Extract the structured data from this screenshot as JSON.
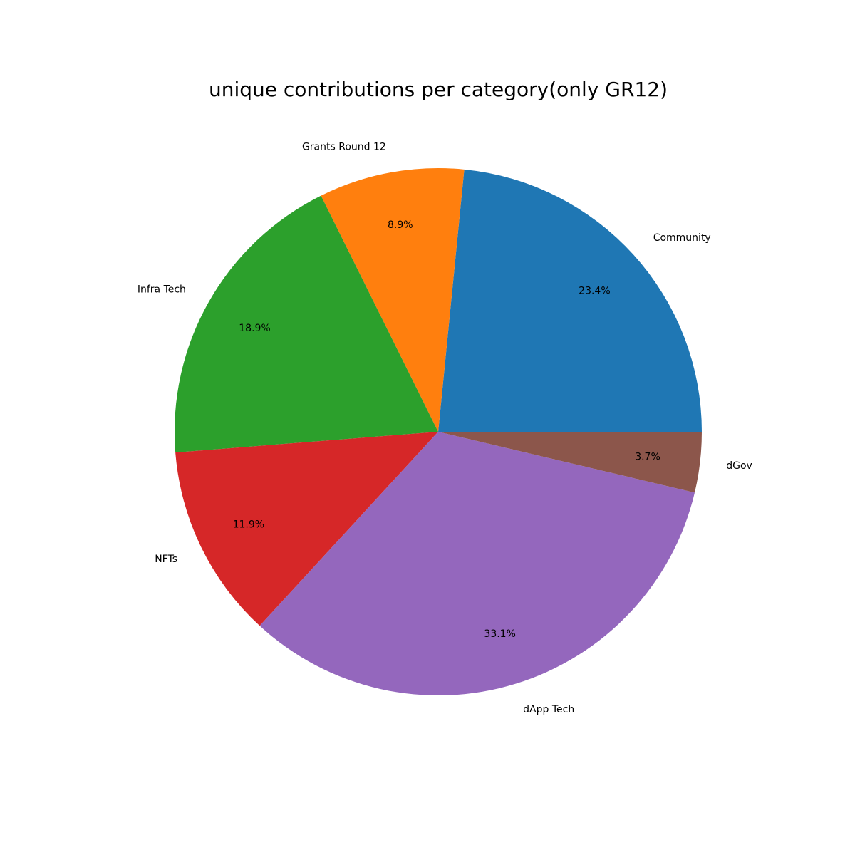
{
  "chart_data": {
    "type": "pie",
    "title": "unique contributions per category(only GR12)",
    "start_angle_deg": 0,
    "direction": "counterclockwise",
    "slices": [
      {
        "label": "Community",
        "value": 23.4,
        "pct_label": "23.4%",
        "color": "#1f77b4"
      },
      {
        "label": "Grants Round 12",
        "value": 8.9,
        "pct_label": "8.9%",
        "color": "#ff7f0e"
      },
      {
        "label": "Infra Tech",
        "value": 18.9,
        "pct_label": "18.9%",
        "color": "#2ca02c"
      },
      {
        "label": "NFTs",
        "value": 11.9,
        "pct_label": "11.9%",
        "color": "#d62728"
      },
      {
        "label": "dApp Tech",
        "value": 33.1,
        "pct_label": "33.1%",
        "color": "#9467bd"
      },
      {
        "label": "dGov",
        "value": 3.7,
        "pct_label": "3.7%",
        "color": "#8c564b"
      }
    ]
  }
}
